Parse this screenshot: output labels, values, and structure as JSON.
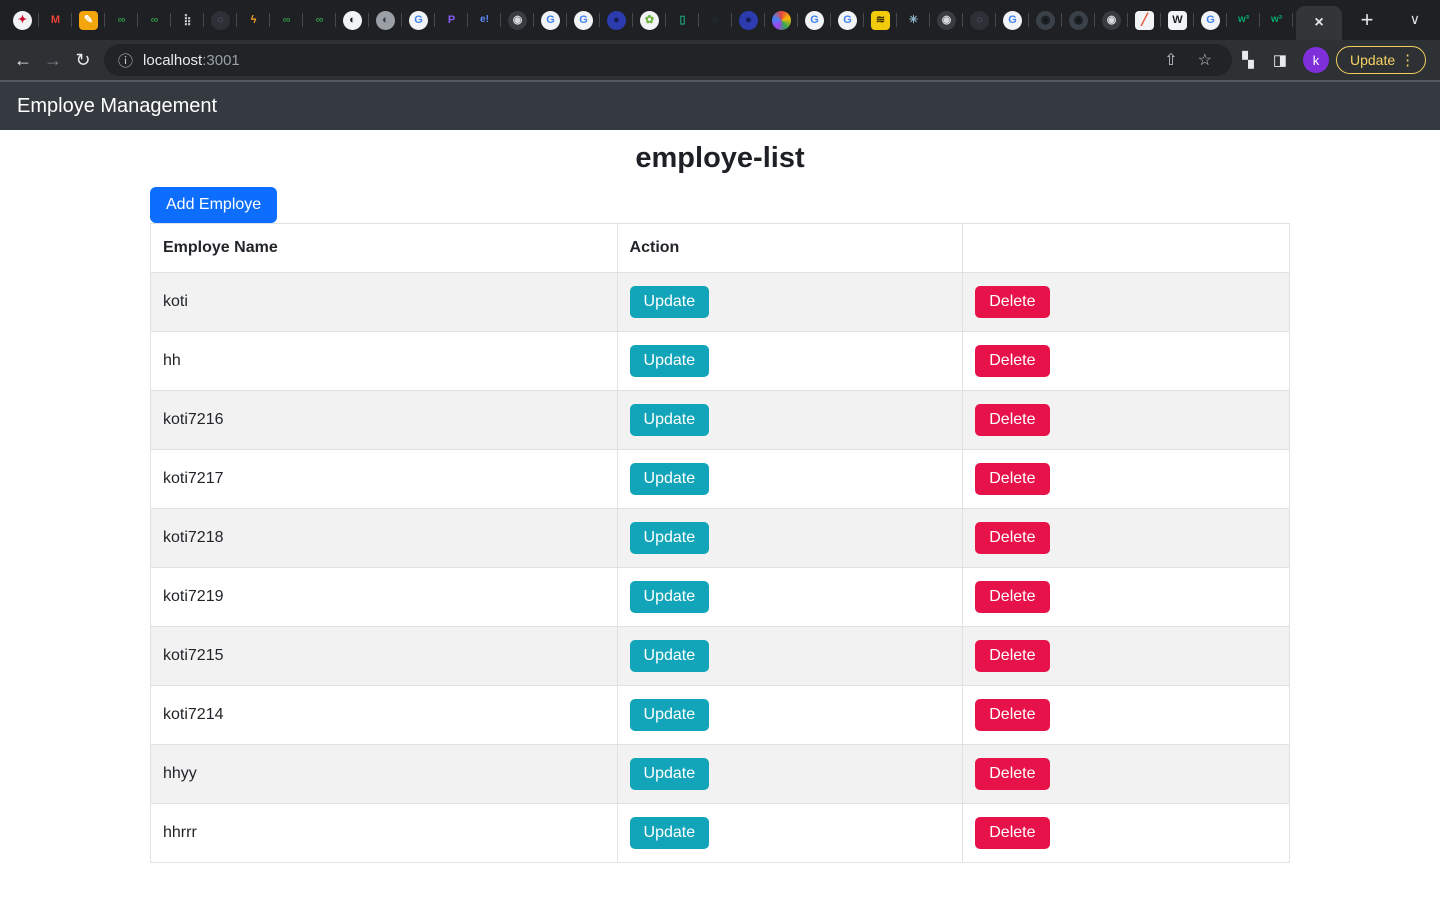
{
  "browser": {
    "favicons": [
      {
        "n": "shield-icon",
        "g": "✦",
        "c": "#c8102e",
        "b": "#f1f3f4",
        "s": "r"
      },
      {
        "n": "gmail-icon",
        "g": "M",
        "c": "#ea4335",
        "b": "",
        "s": ""
      },
      {
        "n": "edit-icon",
        "g": "✎",
        "c": "#ffffff",
        "b": "#f2a60c",
        "s": "q"
      },
      {
        "n": "geeksforgeeks-icon",
        "g": "∞",
        "c": "#2f8d46",
        "b": "",
        "s": ""
      },
      {
        "n": "geeksforgeeks-icon",
        "g": "∞",
        "c": "#2f8d46",
        "b": "",
        "s": ""
      },
      {
        "n": "dots-icon",
        "g": "⣷",
        "c": "#c8ccd0",
        "b": "",
        "s": ""
      },
      {
        "n": "github-dim-icon",
        "g": "○",
        "c": "#555b63",
        "b": "#2d3137",
        "s": "r"
      },
      {
        "n": "lightning-icon",
        "g": "ϟ",
        "c": "#f5a623",
        "b": "",
        "s": ""
      },
      {
        "n": "geeksforgeeks-icon",
        "g": "∞",
        "c": "#2f8d46",
        "b": "",
        "s": ""
      },
      {
        "n": "geeksforgeeks-icon",
        "g": "∞",
        "c": "#2f8d46",
        "b": "",
        "s": ""
      },
      {
        "n": "globe-icon",
        "g": "◐",
        "c": "#17191b",
        "b": "#f1f3f4",
        "s": "r"
      },
      {
        "n": "globe-dim-icon",
        "g": "◐",
        "c": "#33373b",
        "b": "#9aa0a6",
        "s": "r"
      },
      {
        "n": "google-icon",
        "g": "G",
        "c": "#4285f4",
        "b": "#f1f3f4",
        "s": "r"
      },
      {
        "n": "p-icon",
        "g": "P",
        "c": "#8b5cf6",
        "b": "",
        "s": ""
      },
      {
        "n": "e-icon",
        "g": "e!",
        "c": "#5b8cff",
        "b": "",
        "s": ""
      },
      {
        "n": "dark-globe-icon",
        "g": "◉",
        "c": "#d7dadd",
        "b": "#383c41",
        "s": "r"
      },
      {
        "n": "google-icon",
        "g": "G",
        "c": "#4285f4",
        "b": "#f1f3f4",
        "s": "r"
      },
      {
        "n": "google-icon",
        "g": "G",
        "c": "#4285f4",
        "b": "#f1f3f4",
        "s": "r"
      },
      {
        "n": "ring-icon",
        "g": "●",
        "c": "#161c54",
        "b": "#2c3cae",
        "s": "r"
      },
      {
        "n": "leaf-icon",
        "g": "✿",
        "c": "#6db33f",
        "b": "#f1f3f4",
        "s": "r"
      },
      {
        "n": "door-icon",
        "g": "▯",
        "c": "#1fa67a",
        "b": "",
        "s": ""
      },
      {
        "n": "dim-ring-icon",
        "g": "○",
        "c": "#24404a",
        "b": "",
        "s": ""
      },
      {
        "n": "ring-icon",
        "g": "●",
        "c": "#161c54",
        "b": "#2c3cae",
        "s": "r"
      },
      {
        "n": "swirl-icon",
        "g": "",
        "c": "",
        "b": "grad",
        "s": "r"
      },
      {
        "n": "google-icon",
        "g": "G",
        "c": "#4285f4",
        "b": "#f1f3f4",
        "s": "r"
      },
      {
        "n": "google-icon",
        "g": "G",
        "c": "#4285f4",
        "b": "#f1f3f4",
        "s": "r"
      },
      {
        "n": "yellow-badge-icon",
        "g": "≋",
        "c": "#3a2d00",
        "b": "#f2cc0c",
        "s": "q"
      },
      {
        "n": "react-icon",
        "g": "✳",
        "c": "#8fb4c9",
        "b": "",
        "s": ""
      },
      {
        "n": "dark-globe-icon",
        "g": "◉",
        "c": "#d7dadd",
        "b": "#383c41",
        "s": "r"
      },
      {
        "n": "github-dim-icon",
        "g": "○",
        "c": "#555b63",
        "b": "#2d3137",
        "s": "r"
      },
      {
        "n": "google-icon",
        "g": "G",
        "c": "#4285f4",
        "b": "#f1f3f4",
        "s": "r"
      },
      {
        "n": "github-icon",
        "g": "◉",
        "c": "#16191c",
        "b": "#3b4148",
        "s": "r"
      },
      {
        "n": "github-icon",
        "g": "◉",
        "c": "#16191c",
        "b": "#3b4148",
        "s": "r"
      },
      {
        "n": "dark-globe-icon",
        "g": "◉",
        "c": "#d7dadd",
        "b": "#383c41",
        "s": "r"
      },
      {
        "n": "pytorch-icon",
        "g": "╱",
        "c": "#ee4c2c",
        "b": "#f1f3f4",
        "s": "q"
      },
      {
        "n": "wikipedia-icon",
        "g": "W",
        "c": "#202122",
        "b": "#f1f3f4",
        "s": "q"
      },
      {
        "n": "google-icon",
        "g": "G",
        "c": "#4285f4",
        "b": "#f1f3f4",
        "s": "r"
      },
      {
        "n": "w3schools-icon",
        "g": "w³",
        "c": "#04aa6d",
        "b": "",
        "s": ""
      },
      {
        "n": "w3schools-icon",
        "g": "w³",
        "c": "#04aa6d",
        "b": "",
        "s": ""
      }
    ],
    "active_tab_close_glyph": "×",
    "new_tab_glyph": "+",
    "tabs_chevron_glyph": "∨",
    "back_glyph": "←",
    "forward_glyph": "→",
    "reload_glyph": "↻",
    "omnibox": {
      "info_glyph": "ⓘ",
      "host": "localhost",
      "port": ":3001",
      "share_glyph": "⇧",
      "star_glyph": "☆"
    },
    "extensions_glyph": "▚",
    "side_panel_glyph": "◨",
    "avatar_letter": "k",
    "update_chip": {
      "label": "Update",
      "menu_glyph": "⋮"
    }
  },
  "navbar": {
    "brand": "Employe Management"
  },
  "page": {
    "title": "employe-list",
    "add_button": "Add Employe"
  },
  "table": {
    "headers": [
      "Employe Name",
      "Action",
      ""
    ],
    "action_labels": {
      "update": "Update",
      "delete": "Delete"
    },
    "rows": [
      "koti",
      "hh",
      "koti7216",
      "koti7217",
      "koti7218",
      "koti7219",
      "koti7215",
      "koti7214",
      "hhyy",
      "hhrrr"
    ]
  },
  "colors": {
    "primary_button": "#0d6efd",
    "update_button": "#12a4b8",
    "delete_button": "#e8124a",
    "navbar_bg": "#343a40",
    "stripe_row": "#f2f2f2",
    "table_border": "#dee2e6",
    "chrome_update_chip": "#f5d264",
    "avatar_bg": "#7e2fd9"
  }
}
